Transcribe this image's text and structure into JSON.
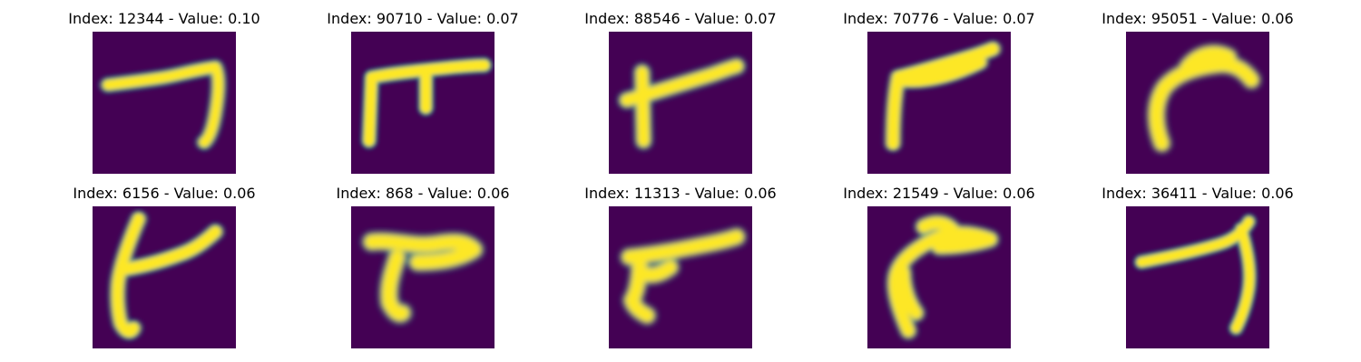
{
  "figure": {
    "colors": {
      "background": "#440154",
      "mid_dark": "#31688e",
      "mid": "#21918c",
      "mid_light": "#5ec962",
      "stroke": "#fde725"
    },
    "panels": [
      {
        "title": "Index: 12344 - Value: 0.10",
        "index": 12344,
        "value": 0.1,
        "shape": "hooked seven"
      },
      {
        "title": "Index: 90710 - Value: 0.07",
        "index": 90710,
        "value": 0.07,
        "shape": "square frame with stub"
      },
      {
        "title": "Index: 88546 - Value: 0.07",
        "index": 88546,
        "value": 0.07,
        "shape": "slanted T"
      },
      {
        "title": "Index: 70776 - Value: 0.07",
        "index": 70776,
        "value": 0.07,
        "shape": "angled L"
      },
      {
        "title": "Index: 95051 - Value: 0.06",
        "index": 95051,
        "value": 0.06,
        "shape": "curved hook"
      },
      {
        "title": "Index: 6156 - Value: 0.06",
        "index": 6156,
        "value": 0.06,
        "shape": "crossed stroke"
      },
      {
        "title": "Index: 868 - Value: 0.06",
        "index": 868,
        "value": 0.06,
        "shape": "bird-like blob"
      },
      {
        "title": "Index: 11313 - Value: 0.06",
        "index": 11313,
        "value": 0.06,
        "shape": "wedge with leg"
      },
      {
        "title": "Index: 21549 - Value: 0.06",
        "index": 21549,
        "value": 0.06,
        "shape": "curved hook"
      },
      {
        "title": "Index: 36411 - Value: 0.06",
        "index": 36411,
        "value": 0.06,
        "shape": "long seven"
      }
    ]
  }
}
